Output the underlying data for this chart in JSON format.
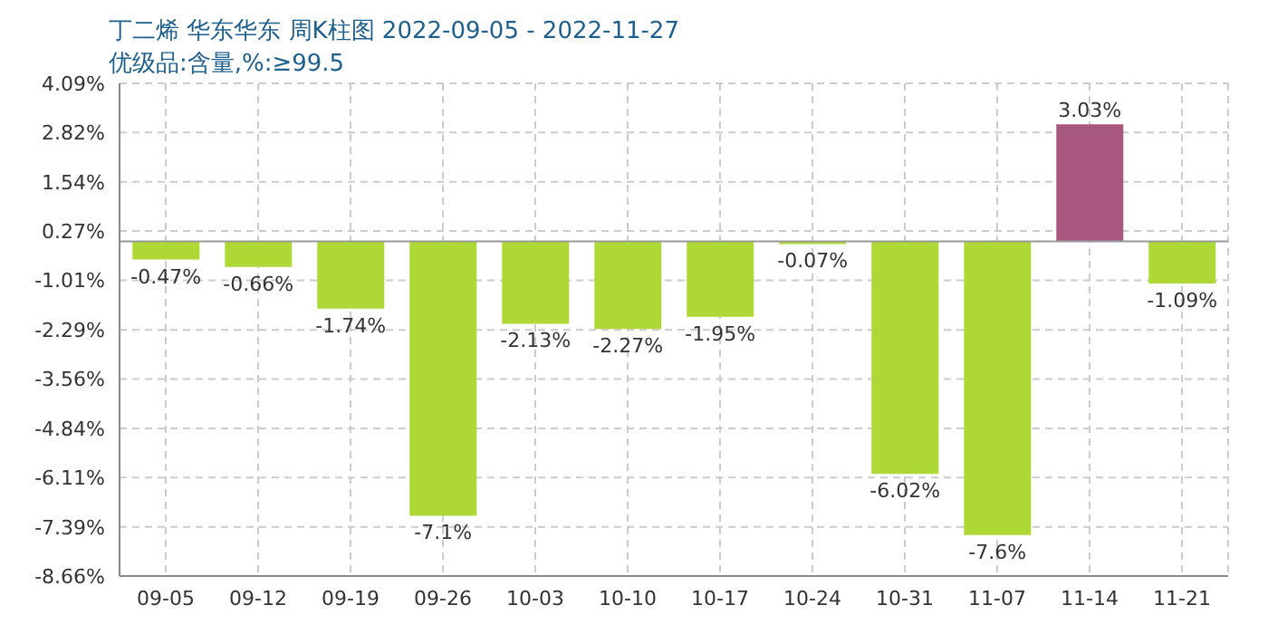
{
  "chart_data": {
    "type": "bar",
    "title": "丁二烯 华东华东 周K柱图 2022-09-05 - 2022-11-27",
    "subtitle": "优级品:含量,%:≥99.5",
    "categories": [
      "09-05",
      "09-12",
      "09-19",
      "09-26",
      "10-03",
      "10-10",
      "10-17",
      "10-24",
      "10-31",
      "11-07",
      "11-14",
      "11-21"
    ],
    "values": [
      -0.47,
      -0.66,
      -1.74,
      -7.1,
      -2.13,
      -2.27,
      -1.95,
      -0.07,
      -6.02,
      -7.6,
      3.03,
      -1.09
    ],
    "colors": [
      "#add836",
      "#add836",
      "#add836",
      "#add836",
      "#add836",
      "#add836",
      "#add836",
      "#add836",
      "#add836",
      "#add836",
      "#a8577e",
      "#add836"
    ],
    "value_labels": [
      "-0.47%",
      "-0.66%",
      "-1.74%",
      "-7.1%",
      "-2.13%",
      "-2.27%",
      "-1.95%",
      "-0.07%",
      "-6.02%",
      "-7.6%",
      "3.03%",
      "-1.09%"
    ],
    "ylim": [
      -8.66,
      4.09
    ],
    "yticks": [
      {
        "value": 4.09,
        "label": "4.09%"
      },
      {
        "value": 2.82,
        "label": "2.82%"
      },
      {
        "value": 1.54,
        "label": "1.54%"
      },
      {
        "value": 0.27,
        "label": "0.27%"
      },
      {
        "value": -1.01,
        "label": "-1.01%"
      },
      {
        "value": -2.29,
        "label": "-2.29%"
      },
      {
        "value": -3.56,
        "label": "-3.56%"
      },
      {
        "value": -4.84,
        "label": "-4.84%"
      },
      {
        "value": -6.11,
        "label": "-6.11%"
      },
      {
        "value": -7.39,
        "label": "-7.39%"
      },
      {
        "value": -8.66,
        "label": "-8.66%"
      }
    ],
    "ref_lines": [
      {
        "axis": "y",
        "value": 0,
        "color": "#999999"
      }
    ],
    "grid": true
  }
}
